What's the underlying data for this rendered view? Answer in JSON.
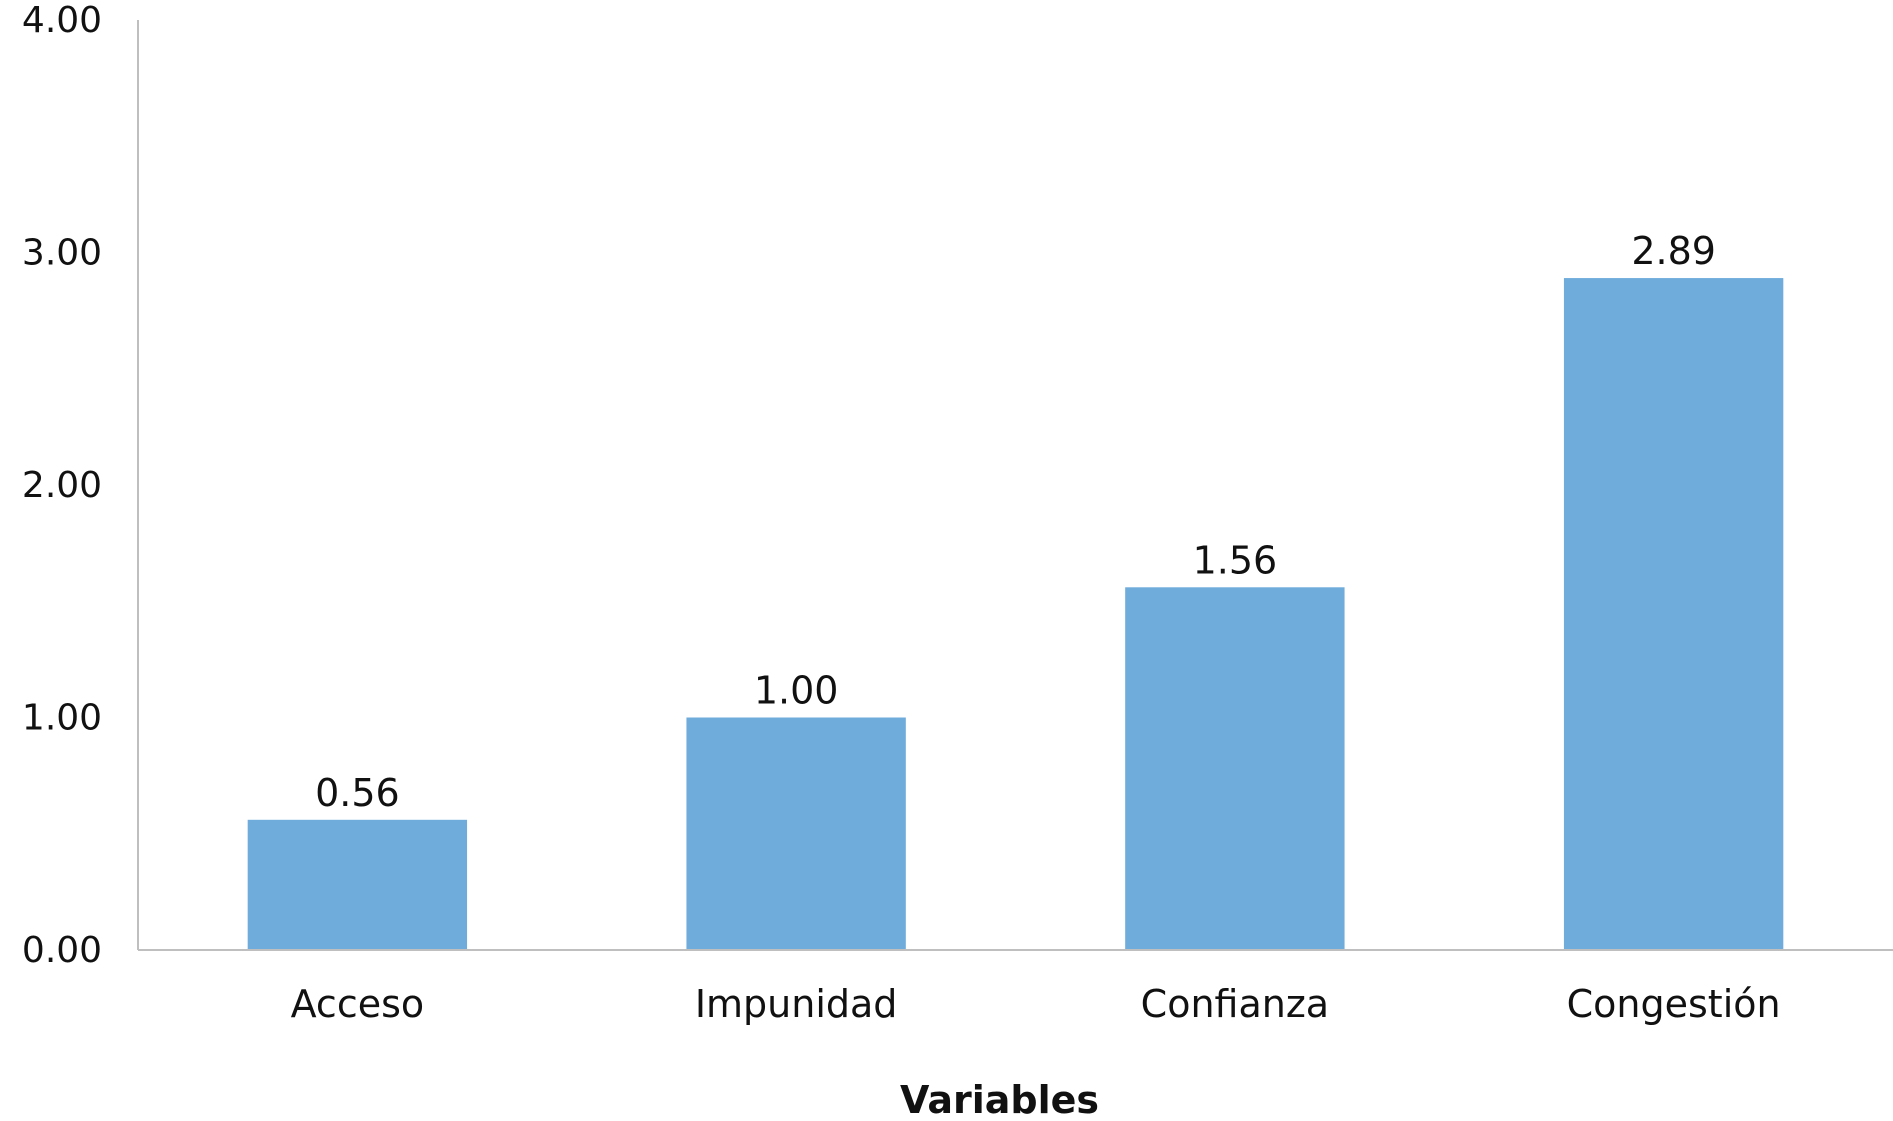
{
  "chart_data": {
    "type": "bar",
    "categories": [
      "Acceso",
      "Impunidad",
      "Confianza",
      "Congestión"
    ],
    "values": [
      0.56,
      1.0,
      1.56,
      2.89
    ],
    "data_labels": [
      "0.56",
      "1.00",
      "1.56",
      "2.89"
    ],
    "title": "",
    "xlabel": "Variables",
    "ylabel": "",
    "ylim": [
      0,
      4
    ],
    "yticks": [
      0,
      1,
      2,
      3,
      4
    ],
    "ytick_labels": [
      "0.00",
      "1.00",
      "2.00",
      "3.00",
      "4.00"
    ],
    "grid": false,
    "legend": "none",
    "bar_color": "#6FABDB",
    "axis_color": "#BFBFBF"
  }
}
